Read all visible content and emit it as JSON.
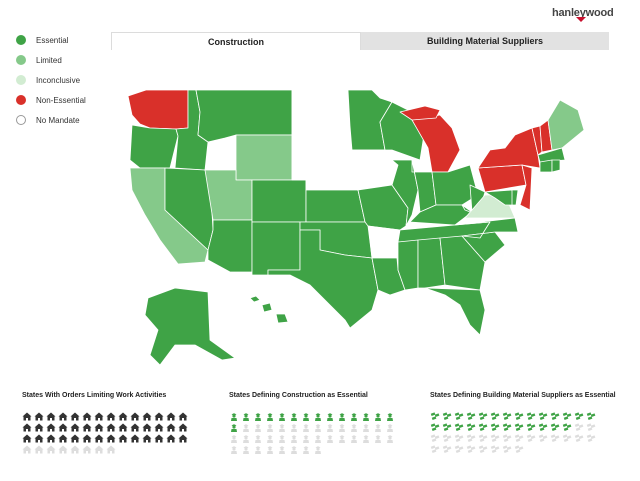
{
  "legend": [
    {
      "label": "Essential",
      "color": "#3fa346"
    },
    {
      "label": "Limited",
      "color": "#85c98a"
    },
    {
      "label": "Inconclusive",
      "color": "#d2ecd2"
    },
    {
      "label": "Non-Essential",
      "color": "#d9302a"
    },
    {
      "label": "No Mandate",
      "color": "#ffffff"
    }
  ],
  "logo": "hanleywood",
  "tabs": [
    {
      "label": "Construction",
      "active": true
    },
    {
      "label": "Building Material Suppliers",
      "active": false
    }
  ],
  "stats": [
    {
      "title": "States With Orders Limiting Work Activities",
      "icon": "house-icon",
      "filled": 42,
      "total": 50,
      "color": "#333333"
    },
    {
      "title": "States Defining Construction as Essential",
      "icon": "worker-icon",
      "filled": 15,
      "total": 50,
      "color": "#3fa346"
    },
    {
      "title": "States Defining Building Material Suppliers as Essential",
      "icon": "bricks-icon",
      "filled": 26,
      "total": 50,
      "color": "#3fa346"
    }
  ]
}
